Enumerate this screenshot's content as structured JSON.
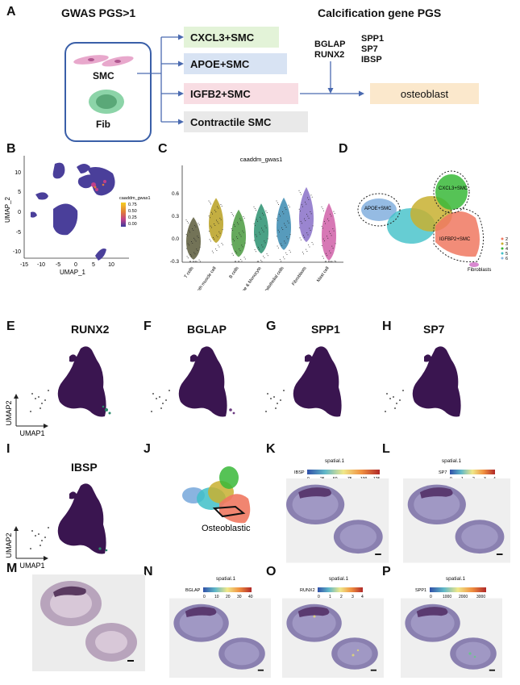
{
  "panels": {
    "A": {
      "label": "A",
      "header_left": "GWAS PGS>1",
      "header_right": "Calcification gene PGS",
      "cell_labels": [
        "SMC",
        "Fib"
      ],
      "cell_types": [
        {
          "label": "CXCL3+SMC",
          "color": "#e3f3d8"
        },
        {
          "label": "APOE+SMC",
          "color": "#d8e3f3"
        },
        {
          "label": "IGFB2+SMC",
          "color": "#f8dde3"
        },
        {
          "label": "Contractile SMC",
          "color": "#e9e9e9"
        }
      ],
      "genes_left": [
        "BGLAP",
        "RUNX2"
      ],
      "genes_right": [
        "SPP1",
        "SP7",
        "IBSP"
      ],
      "target": "osteoblast",
      "target_color": "#fbe8cc"
    },
    "B": {
      "label": "B",
      "xlabel": "UMAP_1",
      "ylabel": "UMAP_2",
      "xticks": [
        "-15",
        "-10",
        "-5",
        "0",
        "5",
        "10"
      ],
      "yticks": [
        "10",
        "5",
        "0",
        "-5",
        "-10"
      ],
      "legend_title": "caaddm_gwas1",
      "legend_ticks": [
        "0.75",
        "0.50",
        "0.25",
        "0.00"
      ]
    },
    "C": {
      "label": "C",
      "title": "caaddm_gwas1",
      "yticks": [
        "0.6",
        "0.3",
        "0.0",
        "-0.3"
      ]
    },
    "D": {
      "label": "D",
      "clusters": [
        "APOE+SMC",
        "CXCL3+SMC",
        "IGFBP2+SMC",
        "Fibroblasts"
      ],
      "legend": [
        "2",
        "3",
        "4",
        "5",
        "6"
      ]
    },
    "E": {
      "label": "E",
      "gene": "RUNX2",
      "xlabel": "UMAP1",
      "ylabel": "UMAP2"
    },
    "F": {
      "label": "F",
      "gene": "BGLAP"
    },
    "G": {
      "label": "G",
      "gene": "SPP1"
    },
    "H": {
      "label": "H",
      "gene": "SP7"
    },
    "I": {
      "label": "I",
      "gene": "IBSP",
      "xlabel": "UMAP1",
      "ylabel": "UMAP2"
    },
    "J": {
      "label": "J",
      "annotation": "Osteoblastic"
    },
    "K": {
      "label": "K",
      "title": "spatial.1",
      "feature": "IBSP",
      "ticks": [
        "0",
        "25",
        "50",
        "75",
        "100",
        "125"
      ]
    },
    "L": {
      "label": "L",
      "title": "spatial.1",
      "feature": "SP7",
      "ticks": [
        "0",
        "1",
        "2",
        "3",
        "4"
      ]
    },
    "M": {
      "label": "M"
    },
    "N": {
      "label": "N",
      "title": "spatial.1",
      "feature": "BGLAP",
      "ticks": [
        "0",
        "10",
        "20",
        "30",
        "40"
      ]
    },
    "O": {
      "label": "O",
      "title": "spatial.1",
      "feature": "RUNX2",
      "ticks": [
        "0",
        "1",
        "2",
        "3",
        "4"
      ]
    },
    "P": {
      "label": "P",
      "title": "spatial.1",
      "feature": "SPP1",
      "ticks": [
        "0",
        "1000",
        "2000",
        "3000"
      ]
    }
  },
  "chart_data": [
    {
      "type": "scatter",
      "panel": "B",
      "title": "",
      "xlabel": "UMAP_1",
      "ylabel": "UMAP_2",
      "xlim": [
        -15,
        13
      ],
      "ylim": [
        -13,
        14
      ],
      "color_by": "caaddm_gwas1",
      "color_range": [
        0.0,
        0.75
      ]
    },
    {
      "type": "violin",
      "panel": "C",
      "title": "caaddm_gwas1",
      "categories": [
        "T cells",
        "Smooth muscle cell",
        "B cells",
        "Macrophage & Monocyte",
        "Endothelial cells",
        "Fibroblasts",
        "Mast cell"
      ],
      "series": [
        {
          "values": [
            -0.1,
            0.1,
            -0.05,
            0.0,
            0.05,
            0.15,
            -0.05
          ]
        }
      ],
      "ylim": [
        -0.3,
        0.8
      ],
      "colors": [
        "#5a5a3a",
        "#b8a020",
        "#4a9a40",
        "#2a9070",
        "#3a8ab0",
        "#8870c8",
        "#d060a8"
      ]
    },
    {
      "type": "scatter",
      "panel": "D",
      "xlim": [
        0,
        1
      ],
      "ylim": [
        0,
        1
      ],
      "clusters": [
        "APOE+SMC",
        "CXCL3+SMC",
        "IGFBP2+SMC",
        "Fibroblasts"
      ]
    }
  ]
}
